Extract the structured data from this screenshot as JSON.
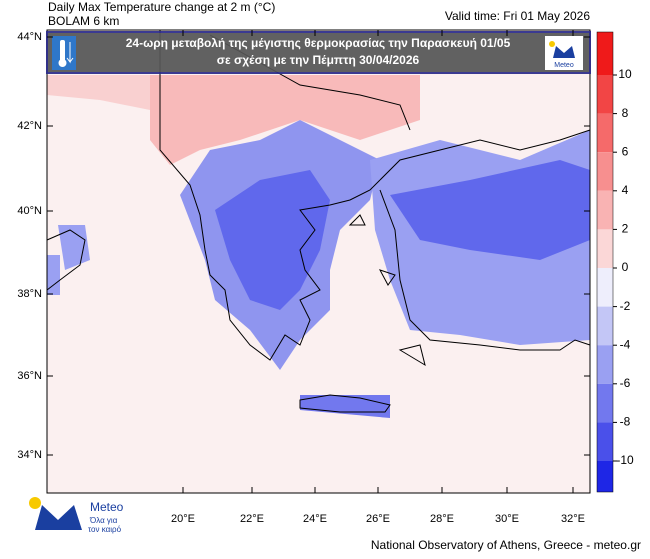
{
  "header": {
    "title": "Daily Max Temperature change at 2 m (°C)",
    "model": "BOLAM 6 km",
    "valid_time": "Valid time: Fri 01 May 2026"
  },
  "banner": {
    "line1": "24-ωρη μεταβολή της μέγιστης θερμοκρασίας την Παρασκευή 01/05",
    "line2": "σε σχέση με την Πέμπτη 30/04/2026",
    "logo": "Meteo"
  },
  "axes": {
    "lat_labels": [
      "44°N",
      "42°N",
      "40°N",
      "38°N",
      "36°N",
      "34°N"
    ],
    "lon_labels": [
      "20°E",
      "22°E",
      "24°E",
      "26°E",
      "28°E",
      "30°E",
      "32°E"
    ]
  },
  "colorbar": {
    "ticks": [
      10,
      8,
      6,
      4,
      2,
      0,
      -2,
      -4,
      -6,
      -8,
      -10
    ],
    "colors": [
      "#ef1a1a",
      "#f24545",
      "#f56a6a",
      "#f78f8f",
      "#f9b3b3",
      "#fbd7d7",
      "#eeeefc",
      "#c3c6f6",
      "#9aa0f2",
      "#7278ee",
      "#4a50ea",
      "#1e26e6"
    ]
  },
  "footer": {
    "logo": "Meteo",
    "slogan_1": "Όλα για",
    "slogan_2": "τον καιρό",
    "credit": "National Observatory of Athens, Greece - meteo.gr"
  }
}
